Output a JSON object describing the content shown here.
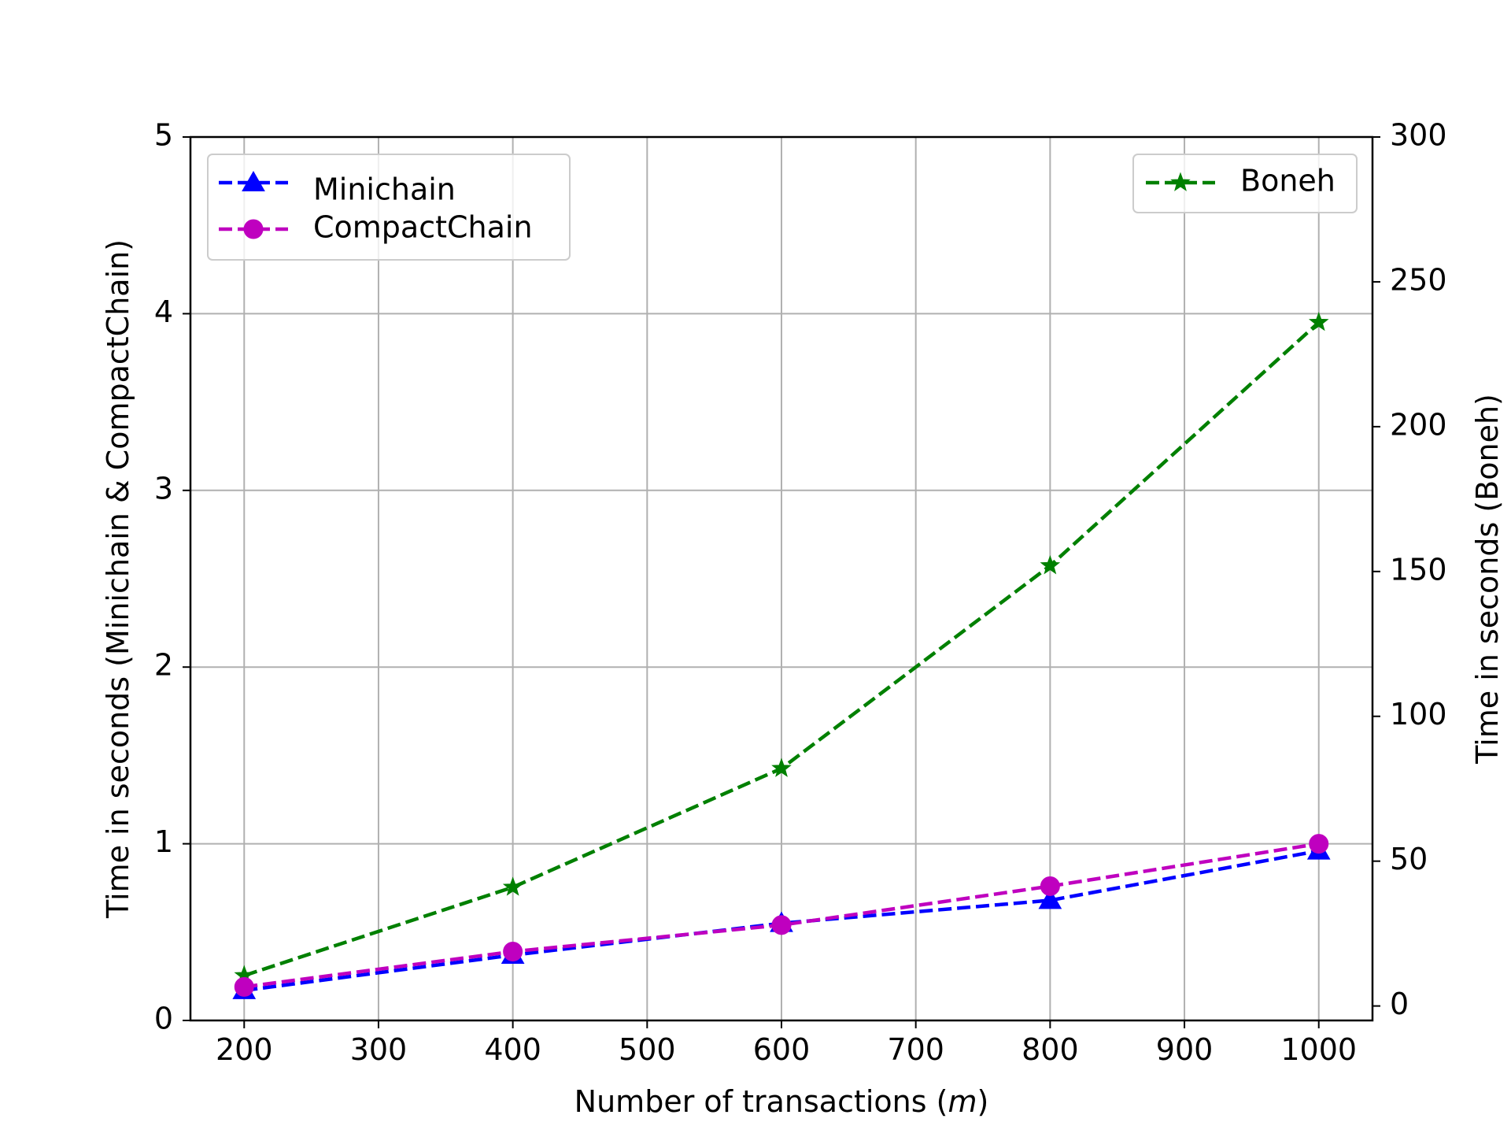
{
  "chart_data": {
    "type": "line",
    "xlabel_prefix": "Number of transactions (",
    "xlabel_var": "m",
    "xlabel_suffix": ")",
    "ylabel_left": "Time in seconds (Minichain & CompactChain)",
    "ylabel_right": "Time in seconds (Boneh)",
    "x": [
      200,
      400,
      600,
      800,
      1000
    ],
    "xlim": [
      160,
      1040
    ],
    "xticks": [
      200,
      300,
      400,
      500,
      600,
      700,
      800,
      900,
      1000
    ],
    "ylim_left": [
      0,
      5
    ],
    "yticks_left": [
      0,
      1,
      2,
      3,
      4,
      5
    ],
    "ylim_right": [
      -5,
      300
    ],
    "yticks_right": [
      0,
      50,
      100,
      150,
      200,
      250,
      300
    ],
    "grid": true,
    "series": [
      {
        "name": "Minichain",
        "axis": "left",
        "color": "#0000ff",
        "marker": "triangle",
        "values": [
          0.17,
          0.37,
          0.55,
          0.68,
          0.96
        ]
      },
      {
        "name": "CompactChain",
        "axis": "left",
        "color": "#bf00bf",
        "marker": "circle",
        "values": [
          0.19,
          0.39,
          0.54,
          0.76,
          1.0
        ]
      },
      {
        "name": "Boneh",
        "axis": "right",
        "color": "#008000",
        "marker": "star",
        "values": [
          10.5,
          41,
          82,
          152,
          236
        ]
      }
    ],
    "legend_left_placement": "upper-left",
    "legend_right_placement": "upper-right"
  }
}
